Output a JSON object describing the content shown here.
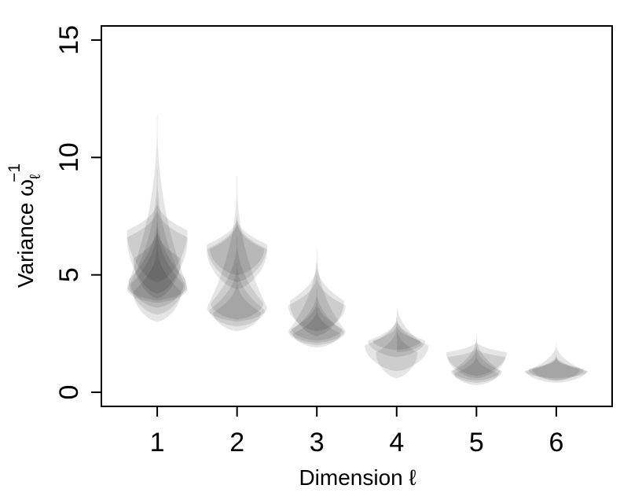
{
  "chart_data": {
    "type": "violin",
    "xlabel": "Dimension ℓ",
    "ylabel_main": "Variance ω",
    "ylabel_subscript": "ℓ",
    "ylabel_superscript": "−1",
    "xlim": [
      0.3,
      6.7
    ],
    "ylim": [
      -0.6,
      15.6
    ],
    "x_ticks": [
      "1",
      "2",
      "3",
      "4",
      "5",
      "6"
    ],
    "y_ticks": [
      "0",
      "5",
      "10",
      "15"
    ],
    "y_tick_values": [
      0,
      5,
      10,
      15
    ],
    "fill_color": "#000000",
    "fill_opacity": 0.1,
    "categories": [
      {
        "dimension": 1,
        "violins": [
          {
            "min": 3.9,
            "max": 11.8,
            "mode": 4.5,
            "halfwidth": 0.38
          },
          {
            "min": 3.8,
            "max": 9.5,
            "mode": 4.4,
            "halfwidth": 0.38
          },
          {
            "min": 3.6,
            "max": 7.2,
            "mode": 4.6,
            "halfwidth": 0.33
          },
          {
            "min": 3.3,
            "max": 7.6,
            "mode": 4.8,
            "halfwidth": 0.36
          },
          {
            "min": 3.0,
            "max": 6.3,
            "mode": 4.3,
            "halfwidth": 0.3
          },
          {
            "min": 4.2,
            "max": 7.9,
            "mode": 6.6,
            "halfwidth": 0.38
          },
          {
            "min": 4.7,
            "max": 8.2,
            "mode": 6.9,
            "halfwidth": 0.38
          },
          {
            "min": 4.0,
            "max": 7.0,
            "mode": 5.7,
            "halfwidth": 0.3
          }
        ]
      },
      {
        "dimension": 2,
        "violins": [
          {
            "min": 3.0,
            "max": 9.2,
            "mode": 3.6,
            "halfwidth": 0.38
          },
          {
            "min": 2.8,
            "max": 5.5,
            "mode": 3.5,
            "halfwidth": 0.35
          },
          {
            "min": 3.1,
            "max": 6.6,
            "mode": 3.8,
            "halfwidth": 0.33
          },
          {
            "min": 2.6,
            "max": 4.8,
            "mode": 3.4,
            "halfwidth": 0.3
          },
          {
            "min": 4.4,
            "max": 7.4,
            "mode": 6.1,
            "halfwidth": 0.38
          },
          {
            "min": 4.7,
            "max": 7.5,
            "mode": 6.3,
            "halfwidth": 0.38
          },
          {
            "min": 5.0,
            "max": 7.3,
            "mode": 6.1,
            "halfwidth": 0.34
          }
        ]
      },
      {
        "dimension": 3,
        "violins": [
          {
            "min": 2.0,
            "max": 6.1,
            "mode": 2.6,
            "halfwidth": 0.36
          },
          {
            "min": 2.1,
            "max": 4.4,
            "mode": 2.6,
            "halfwidth": 0.34
          },
          {
            "min": 2.2,
            "max": 4.0,
            "mode": 2.7,
            "halfwidth": 0.32
          },
          {
            "min": 1.9,
            "max": 3.6,
            "mode": 2.5,
            "halfwidth": 0.3
          },
          {
            "min": 2.4,
            "max": 5.5,
            "mode": 3.9,
            "halfwidth": 0.34
          },
          {
            "min": 2.6,
            "max": 5.0,
            "mode": 3.7,
            "halfwidth": 0.36
          }
        ]
      },
      {
        "dimension": 4,
        "violins": [
          {
            "min": 1.7,
            "max": 3.9,
            "mode": 2.1,
            "halfwidth": 0.32
          },
          {
            "min": 1.5,
            "max": 3.2,
            "mode": 2.2,
            "halfwidth": 0.36
          },
          {
            "min": 1.8,
            "max": 2.9,
            "mode": 2.2,
            "halfwidth": 0.3
          },
          {
            "min": 0.6,
            "max": 2.8,
            "mode": 1.7,
            "halfwidth": 0.26
          },
          {
            "min": 0.9,
            "max": 3.2,
            "mode": 2.0,
            "halfwidth": 0.4
          }
        ]
      },
      {
        "dimension": 5,
        "violins": [
          {
            "min": 0.4,
            "max": 2.4,
            "mode": 0.9,
            "halfwidth": 0.32
          },
          {
            "min": 0.5,
            "max": 2.0,
            "mode": 0.9,
            "halfwidth": 0.3
          },
          {
            "min": 0.6,
            "max": 1.9,
            "mode": 1.5,
            "halfwidth": 0.36
          },
          {
            "min": 0.7,
            "max": 2.2,
            "mode": 1.7,
            "halfwidth": 0.38
          },
          {
            "min": 0.3,
            "max": 1.6,
            "mode": 0.8,
            "halfwidth": 0.28
          }
        ]
      },
      {
        "dimension": 6,
        "violins": [
          {
            "min": 0.4,
            "max": 2.1,
            "mode": 0.9,
            "halfwidth": 0.38
          },
          {
            "min": 0.5,
            "max": 1.5,
            "mode": 1.0,
            "halfwidth": 0.35
          },
          {
            "min": 0.5,
            "max": 1.6,
            "mode": 1.0,
            "halfwidth": 0.3
          },
          {
            "min": 0.6,
            "max": 1.5,
            "mode": 0.9,
            "halfwidth": 0.4
          }
        ]
      }
    ]
  }
}
